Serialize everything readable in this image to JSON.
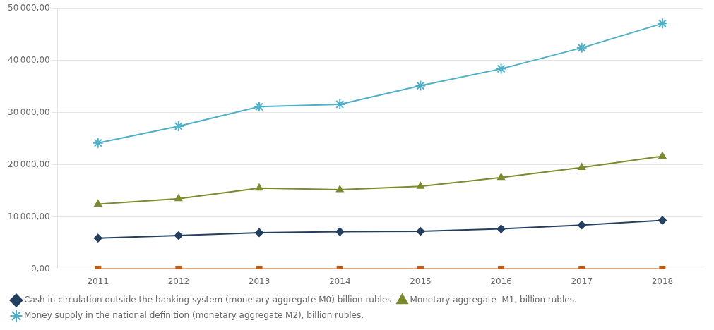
{
  "chart_data": {
    "type": "line",
    "x": [
      2011,
      2012,
      2013,
      2014,
      2015,
      2016,
      2017,
      2018
    ],
    "series": [
      {
        "color": "#c55a11",
        "marker": "square",
        "values": [
          0,
          0,
          0,
          0,
          0,
          0,
          0,
          0
        ]
      },
      {
        "name": "Cash in circulation outside the banking system (monetary aggregate M0) billion rubles",
        "color": "#243f60",
        "marker": "diamond",
        "values": [
          5938.6,
          6430.1,
          6985.6,
          7171.5,
          7239.1,
          7714.8,
          8446.0,
          9339.0
        ]
      },
      {
        "name": "Monetary aggregate  M1, billion rubles.",
        "color": "#7a8c2e",
        "marker": "triangle",
        "values": [
          12447.0,
          13494.8,
          15537.0,
          15222.0,
          15881.0,
          17560.0,
          19508.0,
          21656.0
        ]
      },
      {
        "name": "Money supply in the national definition (monetary aggregate M2), billion rubles.",
        "color": "#4eafc8",
        "marker": "star",
        "values": [
          24204.8,
          27405.4,
          31155.6,
          31615.7,
          35179.7,
          38418.0,
          42442.2,
          47109.3
        ]
      }
    ],
    "xlim": [
      2010.5,
      2018.5
    ],
    "xticks": [
      2011,
      2012,
      2013,
      2014,
      2015,
      2016,
      2017,
      2018
    ],
    "ylim": [
      0,
      50000
    ],
    "yticks": [
      {
        "value": 0,
        "label": "0,00"
      },
      {
        "value": 10000,
        "label": "10 000,00"
      },
      {
        "value": 20000,
        "label": "20 000,00"
      },
      {
        "value": 30000,
        "label": "30 000,00"
      },
      {
        "value": 40000,
        "label": "40 000,00"
      },
      {
        "value": 50000,
        "label": "50 000,00"
      }
    ],
    "grid": true,
    "legend": "bottom"
  }
}
